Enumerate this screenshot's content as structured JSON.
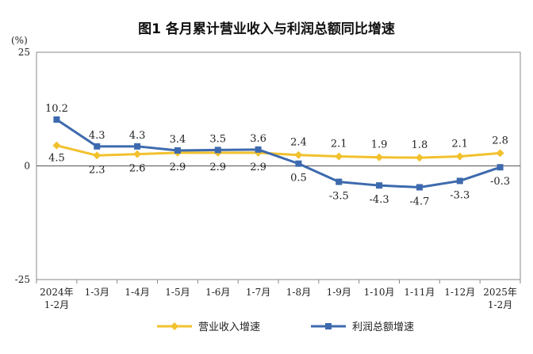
{
  "chart_data": {
    "type": "line",
    "title": "图1  各月累计营业收入与利润总额同比增速",
    "unit": "(%)",
    "ylim": [
      -25,
      25
    ],
    "yticks": [
      "25",
      "0",
      "-25"
    ],
    "categories": [
      [
        "2024年",
        "1-2月"
      ],
      [
        "1-3月"
      ],
      [
        "1-4月"
      ],
      [
        "1-5月"
      ],
      [
        "1-6月"
      ],
      [
        "1-7月"
      ],
      [
        "1-8月"
      ],
      [
        "1-9月"
      ],
      [
        "1-10月"
      ],
      [
        "1-11月"
      ],
      [
        "1-12月"
      ],
      [
        "2025年",
        "1-2月"
      ]
    ],
    "series": [
      {
        "name": "营业收入增速",
        "color": "#F2C12E",
        "marker": "diamond",
        "values": [
          4.5,
          2.3,
          2.6,
          2.9,
          2.9,
          2.9,
          2.4,
          2.1,
          1.9,
          1.8,
          2.1,
          2.8
        ]
      },
      {
        "name": "利润总额增速",
        "color": "#3D6AAE",
        "marker": "square",
        "values": [
          10.2,
          4.3,
          4.3,
          3.4,
          3.5,
          3.6,
          0.5,
          -3.5,
          -4.3,
          -4.7,
          -3.3,
          -0.3
        ]
      }
    ],
    "legend": "bottom",
    "grid": false
  }
}
